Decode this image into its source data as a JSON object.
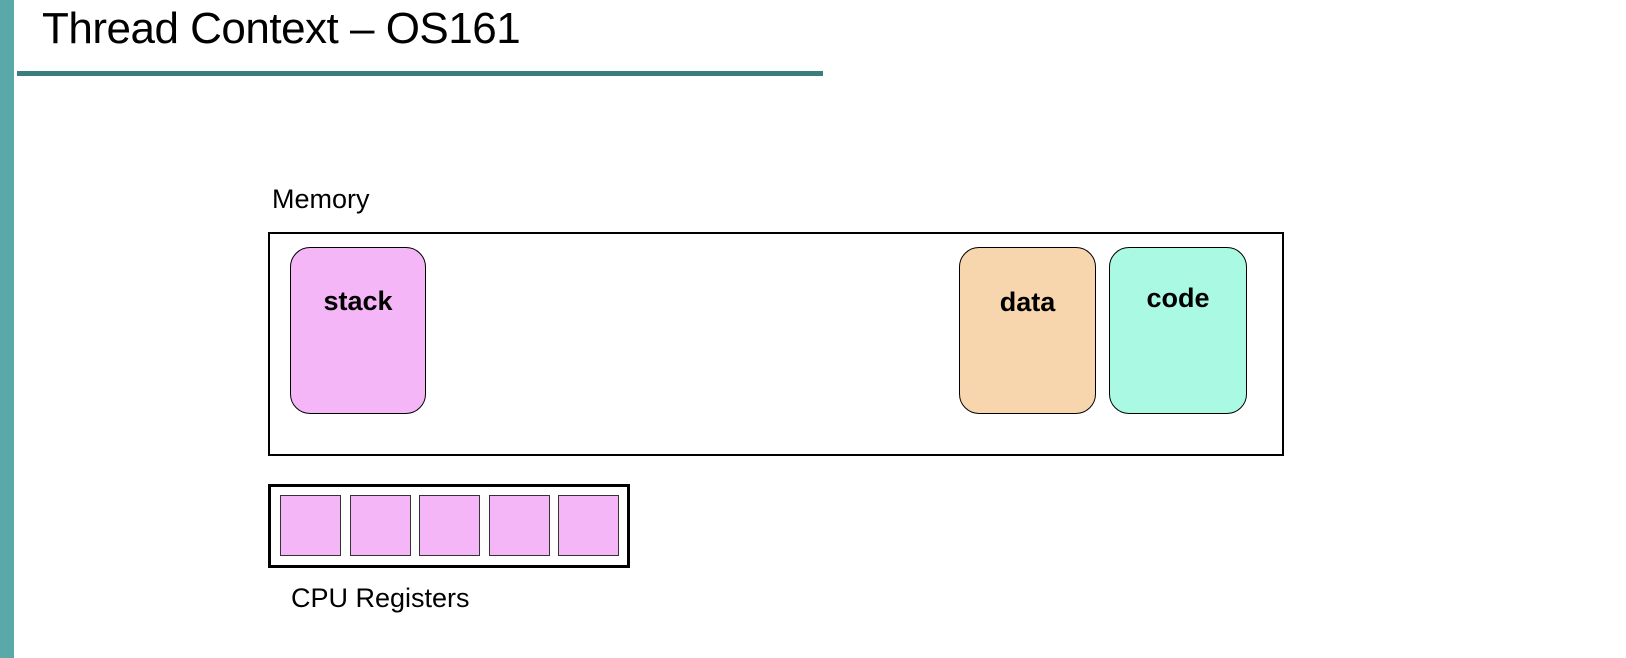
{
  "title": "Thread Context – OS161",
  "memory": {
    "label": "Memory",
    "segments": [
      {
        "label": "stack",
        "color": "#f4b6f7"
      },
      {
        "label": "data",
        "color": "#f7d6ad"
      },
      {
        "label": "code",
        "color": "#aaf9e2"
      }
    ]
  },
  "cpu": {
    "label": "CPU Registers",
    "register_count": 5,
    "register_color": "#f4b6f7"
  },
  "colors": {
    "accent_bar": "#5aa9a8",
    "title_underline": "#3b7d7e"
  }
}
